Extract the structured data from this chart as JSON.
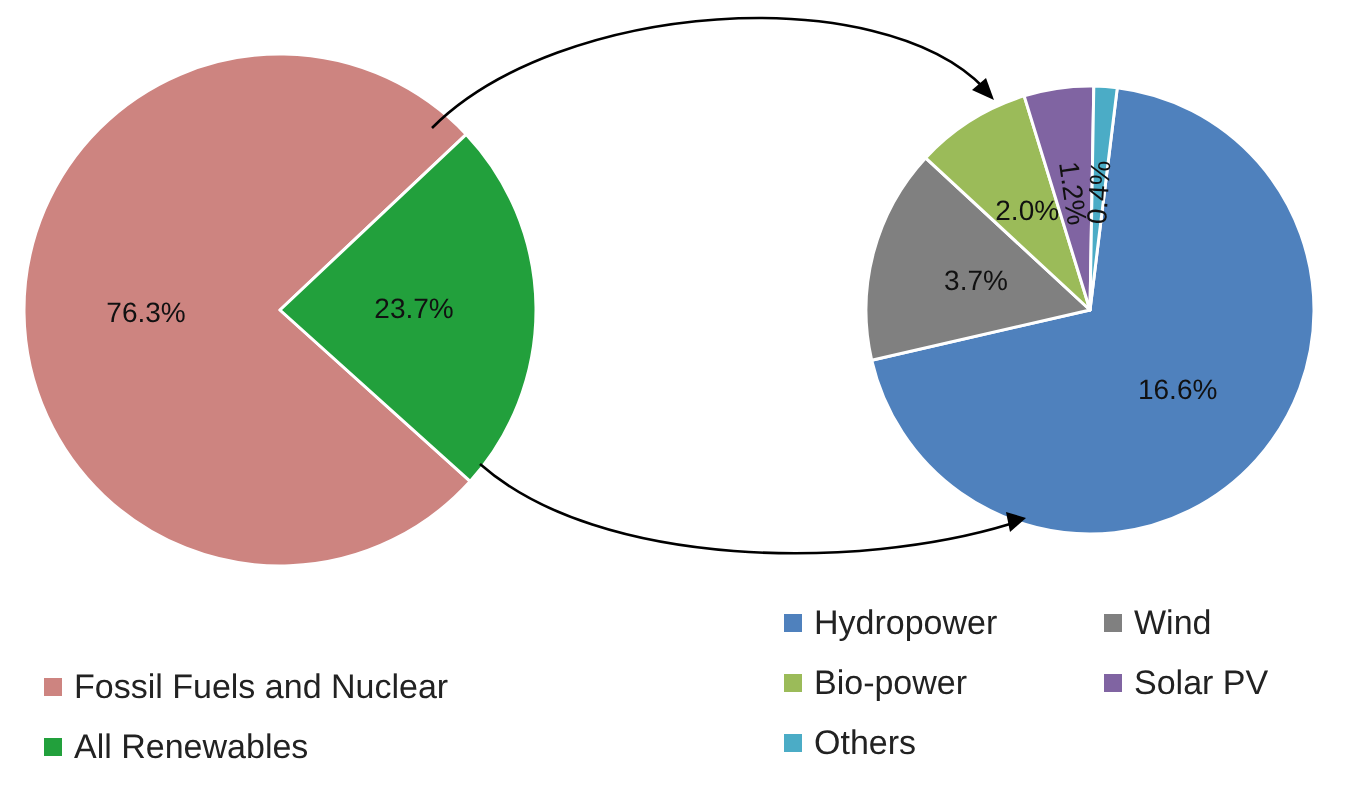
{
  "chart_data": [
    {
      "type": "pie",
      "categories": [
        "Fossil Fuels and Nuclear",
        "All Renewables"
      ],
      "values": [
        76.3,
        23.7
      ],
      "colors": [
        "#cd8480",
        "#22a03c"
      ],
      "value_labels": [
        "76.3%",
        "23.7%"
      ],
      "legend": "bottom left"
    },
    {
      "type": "pie",
      "categories": [
        "Hydropower",
        "Wind",
        "Bio-power",
        "Solar PV",
        "Others"
      ],
      "values": [
        16.6,
        3.7,
        2.0,
        1.2,
        0.4
      ],
      "colors": [
        "#4f81bd",
        "#808080",
        "#9bbb59",
        "#8064a2",
        "#4bacc6"
      ],
      "value_labels": [
        "16.6%",
        "3.7%",
        "2.0%",
        "1.2%",
        "0.4%"
      ],
      "legend": "bottom"
    }
  ]
}
